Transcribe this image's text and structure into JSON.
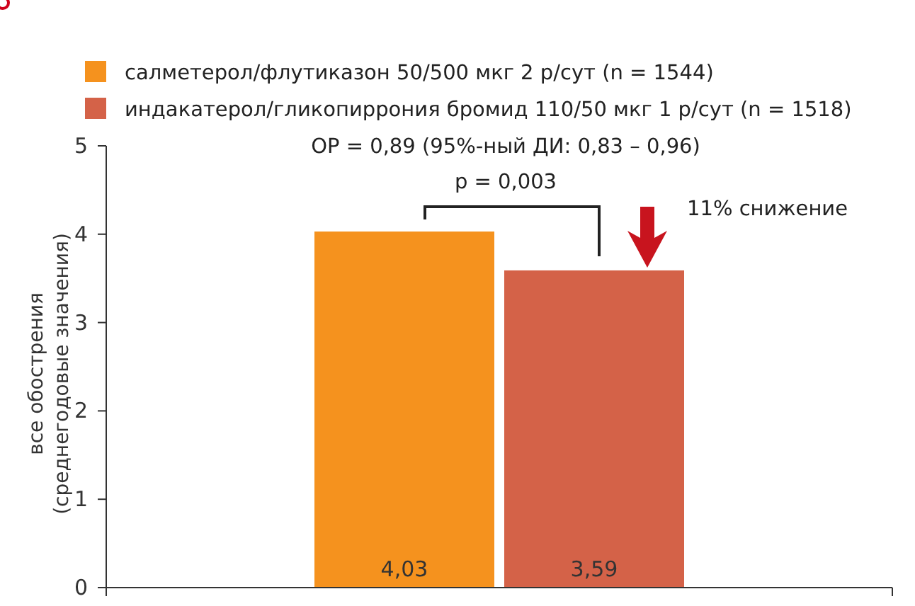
{
  "chart_data": {
    "type": "bar",
    "categories": [
      null
    ],
    "series": [
      {
        "name": "салметерол/флутиказон 50/500 мкг 2 р/сут (n = 1544)",
        "color": "#f5921e",
        "values": [
          4.03
        ],
        "value_labels": [
          "4,03"
        ]
      },
      {
        "name": "индакатерол/гликопиррония бромид 110/50 мкг 1 р/сут (n = 1518)",
        "color": "#d46248",
        "values": [
          3.59
        ],
        "value_labels": [
          "3,59"
        ]
      }
    ],
    "ylabel": "все обострения\n(среднегодовые значения)",
    "ylim": [
      0,
      5
    ],
    "yticks": [
      0,
      1,
      2,
      3,
      4,
      5
    ],
    "grid": false,
    "legend": "top left",
    "annotations": [
      "ОР = 0,89 (95%-ный ДИ: 0,83 – 0,96)",
      "p = 0,003",
      "11% снижение"
    ]
  }
}
